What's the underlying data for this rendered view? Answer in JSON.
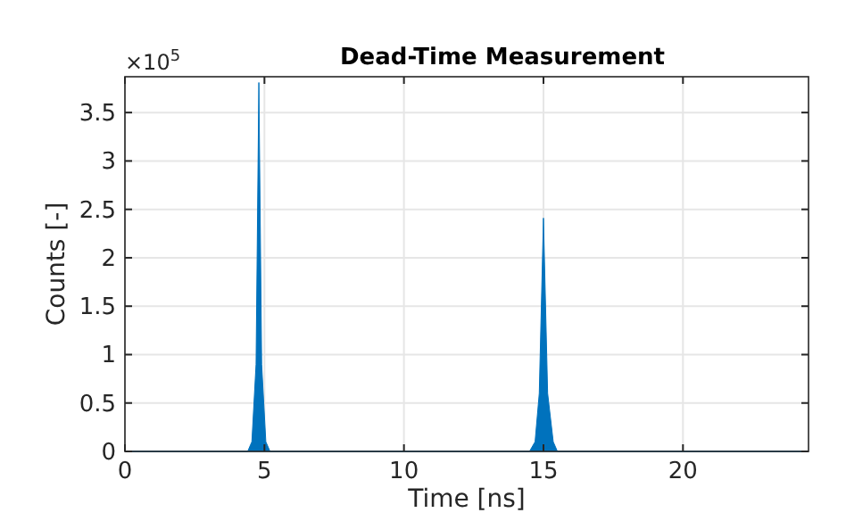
{
  "chart_data": {
    "type": "area",
    "title": "Dead-Time Measurement",
    "xlabel": "Time [ns]",
    "ylabel": "Counts [-]",
    "annotations": [
      "×10$^{5}$"
    ],
    "series": [
      {
        "color": "#0072bd",
        "x": [
          0,
          4.4,
          4.55,
          4.7,
          4.8,
          4.9,
          5.05,
          5.2,
          14.5,
          14.7,
          14.85,
          15,
          15.15,
          15.35,
          15.5,
          24.5
        ],
        "values": [
          0,
          0,
          0.1,
          0.9,
          3.81,
          0.9,
          0.1,
          0,
          0,
          0.1,
          0.6,
          2.41,
          0.6,
          0.1,
          0,
          0
        ]
      }
    ],
    "xlim": [
      0,
      24.5
    ],
    "xticks": [
      0,
      5,
      10,
      15,
      20
    ],
    "ylim": [
      0,
      3.87
    ],
    "yticks": [
      0,
      0.5,
      1,
      1.5,
      2,
      2.5,
      3,
      3.5
    ],
    "grid": true
  }
}
